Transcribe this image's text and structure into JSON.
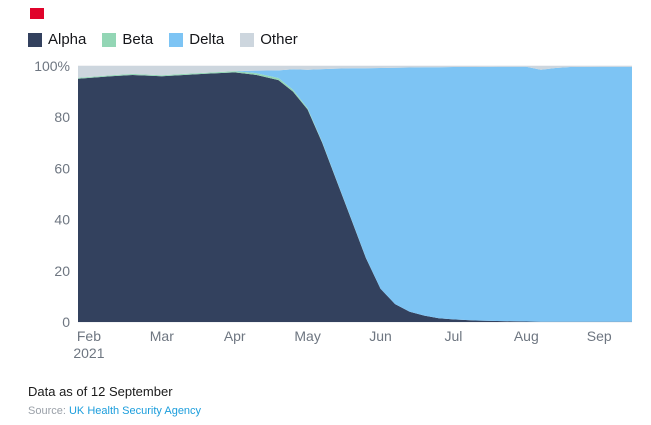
{
  "brand": {
    "accent_red": "#e0032b"
  },
  "legend": [
    {
      "label": "Alpha",
      "color": "#33415e"
    },
    {
      "label": "Beta",
      "color": "#93d6b5"
    },
    {
      "label": "Delta",
      "color": "#7dc4f4"
    },
    {
      "label": "Other",
      "color": "#cdd6de"
    }
  ],
  "chart_data": {
    "type": "area",
    "stacked": true,
    "unit": "%",
    "title": "",
    "xlabel": "",
    "ylabel": "",
    "ylim": [
      0,
      100
    ],
    "xmin": -0.15,
    "xmax": 7.45,
    "grid": true,
    "legend_position": "top-left",
    "x_months": [
      "Feb",
      "Mar",
      "Apr",
      "May",
      "Jun",
      "Jul",
      "Aug",
      "Sep"
    ],
    "x_sub_label": "2021",
    "y_ticks": [
      0,
      20,
      40,
      60,
      80,
      100
    ],
    "y_tick_labels": [
      "0",
      "20",
      "40",
      "60",
      "80",
      "100%"
    ],
    "x": [
      -0.15,
      0.3,
      0.6,
      1,
      1.3,
      1.6,
      2,
      2.3,
      2.6,
      2.8,
      3,
      3.2,
      3.4,
      3.6,
      3.8,
      4,
      4.2,
      4.4,
      4.6,
      4.8,
      5,
      5.3,
      5.6,
      6,
      6.2,
      6.4,
      6.6,
      7,
      7.45
    ],
    "series": [
      {
        "name": "Alpha",
        "color": "#33415e",
        "values": [
          95,
          96,
          96.5,
          96,
          96.5,
          97,
          97.5,
          96.5,
          94.5,
          90,
          83,
          70,
          55,
          40,
          25,
          13,
          7,
          4,
          2.5,
          1.5,
          1,
          0.6,
          0.4,
          0.2,
          0.1,
          0.1,
          0.1,
          0.1,
          0.1
        ]
      },
      {
        "name": "Beta",
        "color": "#93d6b5",
        "values": [
          0.4,
          0.4,
          0.4,
          0.4,
          0.4,
          0.4,
          0.5,
          0.7,
          0.8,
          0.7,
          0.5,
          0.3,
          0.2,
          0.1,
          0.1,
          0,
          0,
          0,
          0,
          0,
          0,
          0,
          0,
          0,
          0,
          0,
          0,
          0,
          0
        ]
      },
      {
        "name": "Delta",
        "color": "#7dc4f4",
        "values": [
          0,
          0,
          0,
          0,
          0,
          0,
          0,
          1,
          3,
          8,
          15,
          28.5,
          43.8,
          59,
          74,
          86.2,
          92.3,
          95.4,
          97,
          98,
          98.6,
          99,
          99.3,
          99.5,
          98.4,
          99.1,
          99.5,
          99.6,
          99.6
        ]
      },
      {
        "name": "Other",
        "color": "#cdd6de",
        "values": [
          4.6,
          3.6,
          3.1,
          3.6,
          3.1,
          2.6,
          2,
          1.8,
          1.7,
          1.3,
          1.5,
          1.2,
          1,
          0.9,
          0.9,
          0.8,
          0.7,
          0.6,
          0.5,
          0.5,
          0.4,
          0.4,
          0.3,
          0.3,
          1.5,
          0.8,
          0.4,
          0.3,
          0.3
        ]
      }
    ]
  },
  "footer": {
    "data_as_of": "Data as of 12 September",
    "source_label": "Source:",
    "source_link": "UK Health Security Agency",
    "source_link_color": "#1b9ddc"
  }
}
